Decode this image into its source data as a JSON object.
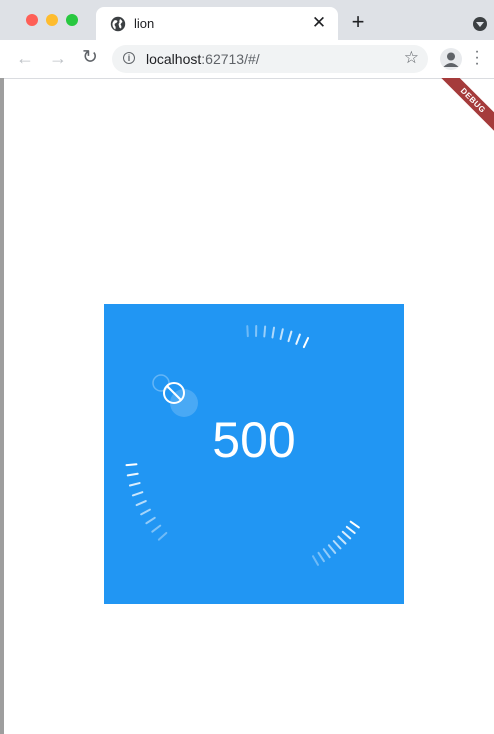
{
  "browser": {
    "tab_title": "lion",
    "url_host": "localhost",
    "url_rest": ":62713/#/",
    "close_symbol": "✕",
    "new_tab_symbol": "+"
  },
  "icons": {
    "tab": "globe-icon",
    "back": "arrow-left-icon",
    "forward": "arrow-right-icon",
    "reload": "reload-icon",
    "info": "info-icon",
    "bookmark": "star-icon",
    "profile": "person-icon",
    "menu": "more-vertical-icon",
    "tab_menu": "chevron-down-icon",
    "gauge_handle": "no-entry-icon"
  },
  "debug_banner": {
    "label": "DEBUG"
  },
  "gauge": {
    "value": "500",
    "background": "#2196f3",
    "tick_color": "#ffffff"
  }
}
